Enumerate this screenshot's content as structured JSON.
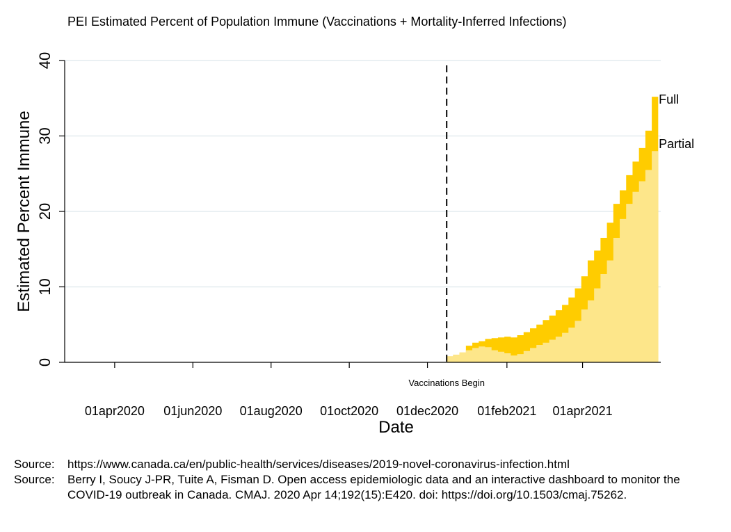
{
  "chart_data": {
    "type": "area",
    "title": "PEI Estimated Percent of Population Immune (Vaccinations + Mortality-Inferred Infections)",
    "xlabel": "Date",
    "ylabel": "Estimated Percent Immune",
    "ylim": [
      0,
      40
    ],
    "yticks": [
      0,
      10,
      20,
      30,
      40
    ],
    "xlim": [
      "2020-02-22",
      "2021-06-01"
    ],
    "xticks": [
      {
        "date": "2020-04-01",
        "label": "01apr2020"
      },
      {
        "date": "2020-06-01",
        "label": "01jun2020"
      },
      {
        "date": "2020-08-01",
        "label": "01aug2020"
      },
      {
        "date": "2020-10-01",
        "label": "01oct2020"
      },
      {
        "date": "2020-12-01",
        "label": "01dec2020"
      },
      {
        "date": "2021-02-01",
        "label": "01feb2021"
      },
      {
        "date": "2021-04-01",
        "label": "01apr2021"
      }
    ],
    "grid": true,
    "annotation": {
      "date": "2020-12-16",
      "label": "Vaccinations Begin"
    },
    "series": [
      {
        "name": "Partial",
        "color": "#fde68a",
        "dates": [
          "2020-12-16",
          "2020-12-21",
          "2020-12-26",
          "2020-12-31",
          "2021-01-05",
          "2021-01-10",
          "2021-01-15",
          "2021-01-20",
          "2021-01-25",
          "2021-01-30",
          "2021-02-04",
          "2021-02-09",
          "2021-02-14",
          "2021-02-19",
          "2021-02-24",
          "2021-03-01",
          "2021-03-06",
          "2021-03-11",
          "2021-03-16",
          "2021-03-21",
          "2021-03-26",
          "2021-03-31",
          "2021-04-05",
          "2021-04-10",
          "2021-04-15",
          "2021-04-20",
          "2021-04-25",
          "2021-04-30",
          "2021-05-05",
          "2021-05-10",
          "2021-05-15",
          "2021-05-20",
          "2021-05-25"
        ],
        "values": [
          0.8,
          1.0,
          1.3,
          1.6,
          1.9,
          2.1,
          2.0,
          1.6,
          1.4,
          1.2,
          0.9,
          1.1,
          1.5,
          1.9,
          2.3,
          2.6,
          3.0,
          3.4,
          3.9,
          4.6,
          5.5,
          7.0,
          8.2,
          9.8,
          11.7,
          13.5,
          16.5,
          19.0,
          21.0,
          22.6,
          24.0,
          25.5,
          28.0
        ]
      },
      {
        "name": "Full",
        "color": "#ffcc00",
        "dates": [
          "2020-12-16",
          "2020-12-21",
          "2020-12-26",
          "2020-12-31",
          "2021-01-05",
          "2021-01-10",
          "2021-01-15",
          "2021-01-20",
          "2021-01-25",
          "2021-01-30",
          "2021-02-04",
          "2021-02-09",
          "2021-02-14",
          "2021-02-19",
          "2021-02-24",
          "2021-03-01",
          "2021-03-06",
          "2021-03-11",
          "2021-03-16",
          "2021-03-21",
          "2021-03-26",
          "2021-03-31",
          "2021-04-05",
          "2021-04-10",
          "2021-04-15",
          "2021-04-20",
          "2021-04-25",
          "2021-04-30",
          "2021-05-05",
          "2021-05-10",
          "2021-05-15",
          "2021-05-20",
          "2021-05-25"
        ],
        "values": [
          0.8,
          1.0,
          1.3,
          2.2,
          2.6,
          2.8,
          3.1,
          3.2,
          3.3,
          3.4,
          3.3,
          3.6,
          4.0,
          4.5,
          5.0,
          5.6,
          6.2,
          6.9,
          7.6,
          8.6,
          9.8,
          11.4,
          13.5,
          14.8,
          16.5,
          18.5,
          21.0,
          22.8,
          24.8,
          26.6,
          28.4,
          30.7,
          35.2
        ]
      }
    ]
  },
  "sources": [
    {
      "label": "Source:",
      "text": "https://www.canada.ca/en/public-health/services/diseases/2019-novel-coronavirus-infection.html"
    },
    {
      "label": "Source:",
      "text": "Berry I, Soucy J-PR, Tuite A, Fisman D. Open access epidemiologic data and an interactive dashboard to monitor the COVID-19 outbreak in Canada. CMAJ. 2020 Apr 14;192(15):E420. doi: https://doi.org/10.1503/cmaj.75262."
    }
  ]
}
